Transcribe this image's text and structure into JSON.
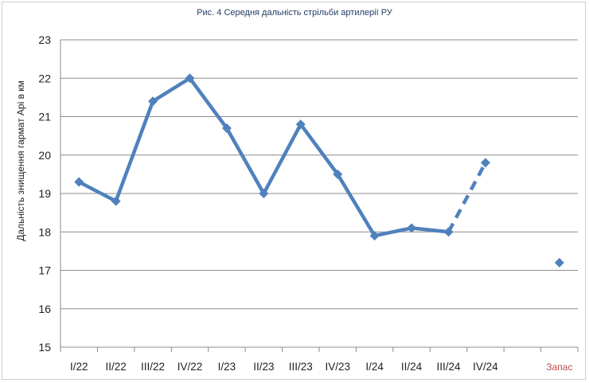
{
  "chart_data": {
    "type": "line",
    "title": "Рис. 4 Середня дальність стрільби артилерії РУ",
    "xlabel": "",
    "ylabel": "Дальність знищення гармат Арі в км",
    "categories": [
      "I/22",
      "II/22",
      "III/22",
      "IV/22",
      "I/23",
      "II/23",
      "III/23",
      "IV/23",
      "I/24",
      "II/24",
      "III/24",
      "IV/24",
      "",
      "Запас"
    ],
    "ylim": [
      15,
      23
    ],
    "yticks": [
      15,
      16,
      17,
      18,
      19,
      20,
      21,
      22,
      23
    ],
    "grid": true,
    "series": [
      {
        "values": [
          19.3,
          18.8,
          21.4,
          22.0,
          20.7,
          19.0,
          20.8,
          19.5,
          17.9,
          18.1,
          18.0,
          19.8,
          null,
          17.2
        ],
        "color": "#4f81bd"
      }
    ],
    "dashed_from_category": "III/24",
    "dashed_to_category": "IV/24",
    "unconnected_category": "Запас",
    "accent_category": "Запас",
    "accent_color": "#c0504d"
  }
}
